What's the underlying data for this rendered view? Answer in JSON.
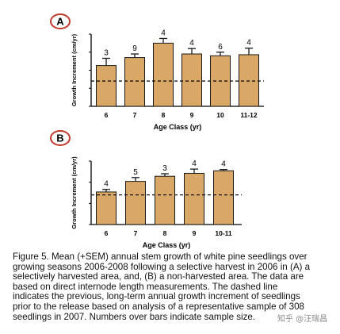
{
  "colors": {
    "bar_fill": "#d9a766",
    "bar_stroke": "#1a1a1a",
    "axis": "#000000",
    "panel_badge_stroke": "#c0392b",
    "reference_line": "#000000"
  },
  "chart_data": [
    {
      "type": "bar",
      "panel": "A",
      "ylabel": "Growth Increment (cm/yr)",
      "xlabel": "Age Class (yr)",
      "categories": [
        "6",
        "7",
        "8",
        "9",
        "10",
        "11-12"
      ],
      "values": [
        11.3,
        13.5,
        17.5,
        14.5,
        14.0,
        14.3
      ],
      "errors": [
        2.0,
        1.0,
        1.3,
        1.5,
        1.0,
        1.8
      ],
      "sample_sizes": [
        "3",
        "9",
        "4",
        "4",
        "6",
        "4"
      ],
      "reference_line": 7,
      "ylim": [
        0,
        20
      ],
      "yticks": [
        "0",
        "5",
        "10",
        "15",
        "20"
      ],
      "grid": false,
      "legend": "none"
    },
    {
      "type": "bar",
      "panel": "B",
      "ylabel": "Growth Increment (cm/yr)",
      "xlabel": "Age Class (yr)",
      "categories": [
        "6",
        "7",
        "8",
        "9",
        "10-11"
      ],
      "values": [
        7.7,
        10.2,
        11.4,
        12.1,
        12.7
      ],
      "errors": [
        0.6,
        0.9,
        0.6,
        1.0,
        0.3
      ],
      "sample_sizes": [
        "4",
        "5",
        "3",
        "4",
        "4"
      ],
      "reference_line": 7,
      "ylim": [
        0,
        15
      ],
      "yticks": [
        "0",
        "5",
        "10",
        "15"
      ],
      "grid": false,
      "legend": "none"
    }
  ],
  "caption_lines": [
    "Figure 5. Mean (+SEM) annual stem growth of white pine seedlings over",
    "growing seasons 2006-2008 following a selective harvest in 2006 in (A) a",
    "selectively harvested area, and, (B) a non-harvested area. The data are",
    "based on direct internode length measurements. The dashed line",
    "indicates the previous, long-term annual growth increment of seedlings",
    "prior to the release based on analysis of a representative sample of 308",
    "seedlings in 2007. Numbers over bars indicate sample size."
  ],
  "watermark": "知乎 @汪瑞昌"
}
